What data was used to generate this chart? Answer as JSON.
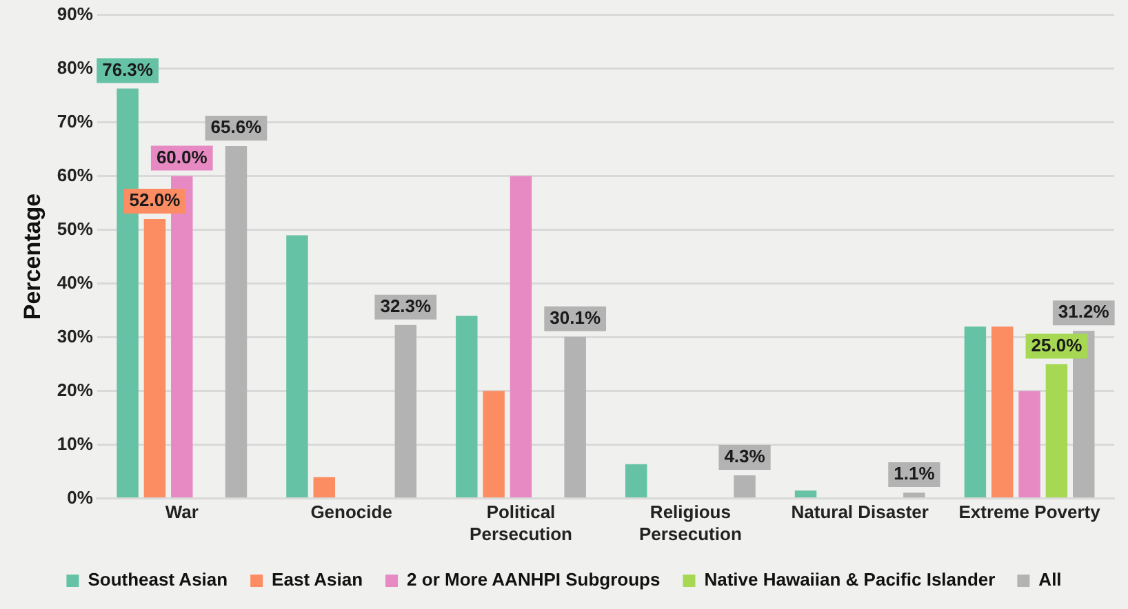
{
  "chart_data": {
    "type": "bar",
    "ylabel": "Percentage",
    "categories": [
      "War",
      "Genocide",
      "Political Persecution",
      "Religious Persecution",
      "Natural Disaster",
      "Extreme Poverty"
    ],
    "series": [
      {
        "name": "Southeast Asian",
        "color": "#66c2a5",
        "values": [
          76.3,
          49,
          34,
          6.4,
          1.5,
          32
        ],
        "value_labels": [
          "76.3%",
          null,
          null,
          null,
          null,
          null
        ]
      },
      {
        "name": "East Asian",
        "color": "#fc8d62",
        "values": [
          52.0,
          4,
          20,
          0,
          0,
          32
        ],
        "value_labels": [
          "52.0%",
          null,
          null,
          null,
          null,
          null
        ]
      },
      {
        "name": "2 or More AANHPI Subgroups",
        "color": "#e78ac3",
        "values": [
          60.0,
          0,
          60,
          0,
          0,
          20
        ],
        "value_labels": [
          "60.0%",
          null,
          null,
          null,
          null,
          null
        ]
      },
      {
        "name": "Native Hawaiian & Pacific Islander",
        "color": "#a6d854",
        "values": [
          0,
          0,
          0,
          0,
          0,
          25.0
        ],
        "value_labels": [
          null,
          null,
          null,
          null,
          null,
          "25.0%"
        ]
      },
      {
        "name": "All",
        "color": "#b3b3b3",
        "values": [
          65.6,
          32.3,
          30.1,
          4.3,
          1.1,
          31.2
        ],
        "value_labels": [
          "65.6%",
          "32.3%",
          "30.1%",
          "4.3%",
          "1.1%",
          "31.2%"
        ]
      }
    ],
    "ylim": [
      0,
      90
    ],
    "yticks": [
      {
        "value": 0,
        "label": "0%"
      },
      {
        "value": 10,
        "label": "10%"
      },
      {
        "value": 20,
        "label": "20%"
      },
      {
        "value": 30,
        "label": "30%"
      },
      {
        "value": 40,
        "label": "40%"
      },
      {
        "value": 50,
        "label": "50%"
      },
      {
        "value": 60,
        "label": "60%"
      },
      {
        "value": 70,
        "label": "70%"
      },
      {
        "value": 80,
        "label": "80%"
      },
      {
        "value": 90,
        "label": "90%"
      }
    ],
    "grid": "y",
    "legend": "bottom"
  }
}
